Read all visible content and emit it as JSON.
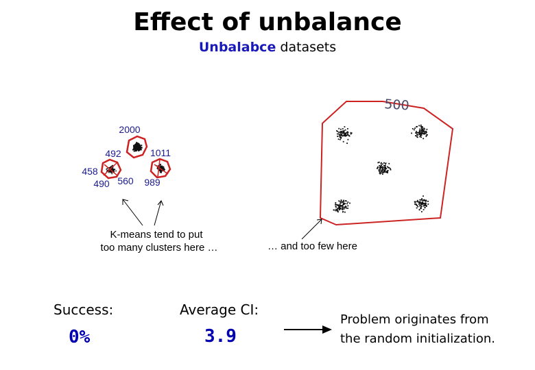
{
  "title": "Effect of unbalance",
  "subtitle": {
    "highlight": "Unbalabce",
    "rest": " datasets"
  },
  "small_clusters": {
    "labels": [
      "2000",
      "492",
      "1011",
      "458",
      "490",
      "560",
      "989"
    ],
    "caption_line1": "K-means tend to put",
    "caption_line2": "too many clusters here …"
  },
  "large_clusters": {
    "label": "500",
    "caption": "… and too few here"
  },
  "stats": {
    "success_label": "Success:",
    "success_value": "0%",
    "ci_label": "Average CI:",
    "ci_value": "3.9"
  },
  "note": {
    "line1": "Problem originates from",
    "line2": "the random initialization."
  },
  "colors": {
    "cluster_outline": "#cc2222",
    "value_text": "#0000b0",
    "label_text": "#1a1a8c"
  }
}
